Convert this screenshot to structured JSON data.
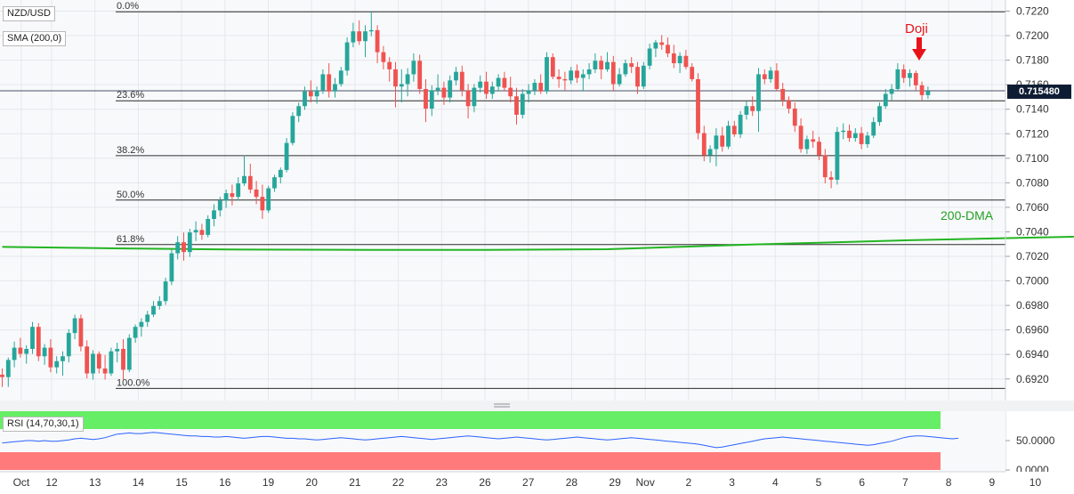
{
  "symbol": "NZD/USD",
  "sma_label": "SMA (200,0)",
  "rsi_label": "RSI (14,70,30,1)",
  "last_price": "0.715480",
  "annotations": {
    "doji": "Doji",
    "dma": "200-DMA"
  },
  "colors": {
    "bull": "#26a69a",
    "bear": "#ef5350",
    "sma": "#22b522",
    "trend_support": "#ff9800",
    "trend_resist": "#7b1fa2",
    "rsi_line": "#2962ff",
    "rsi_ob": "#66ee66",
    "rsi_os": "#ff7b7b",
    "doji_arrow": "#e8131a"
  },
  "chart_data": {
    "type": "candlestick",
    "y_ticks": [
      "0.7220",
      "0.7200",
      "0.7180",
      "0.7160",
      "0.7140",
      "0.7120",
      "0.7100",
      "0.7080",
      "0.7060",
      "0.7040",
      "0.7020",
      "0.7000",
      "0.6980",
      "0.6960",
      "0.6940",
      "0.6920"
    ],
    "x_labels": [
      {
        "label": "Oct",
        "day": -0.7
      },
      {
        "label": "12",
        "day": 0
      },
      {
        "label": "13",
        "day": 1
      },
      {
        "label": "14",
        "day": 2
      },
      {
        "label": "15",
        "day": 3
      },
      {
        "label": "16",
        "day": 4
      },
      {
        "label": "19",
        "day": 5
      },
      {
        "label": "20",
        "day": 6
      },
      {
        "label": "21",
        "day": 7
      },
      {
        "label": "22",
        "day": 8
      },
      {
        "label": "23",
        "day": 9
      },
      {
        "label": "26",
        "day": 10
      },
      {
        "label": "27",
        "day": 11
      },
      {
        "label": "28",
        "day": 12
      },
      {
        "label": "29",
        "day": 13
      },
      {
        "label": "Nov",
        "day": 13.7
      },
      {
        "label": "2",
        "day": 14.7
      },
      {
        "label": "3",
        "day": 15.7
      },
      {
        "label": "4",
        "day": 16.7
      },
      {
        "label": "5",
        "day": 17.7
      },
      {
        "label": "6",
        "day": 18.7
      },
      {
        "label": "7",
        "day": 19.7
      },
      {
        "label": "8",
        "day": 20.7
      },
      {
        "label": "9",
        "day": 21.7
      },
      {
        "label": "10",
        "day": 22.7
      }
    ],
    "fib_levels": [
      {
        "label": "0.0%",
        "price": 0.72195
      },
      {
        "label": "23.6%",
        "price": 0.71469
      },
      {
        "label": "38.2%",
        "price": 0.71021
      },
      {
        "label": "50.0%",
        "price": 0.70659
      },
      {
        "label": "61.8%",
        "price": 0.70296
      },
      {
        "label": "100.0%",
        "price": 0.69123
      }
    ],
    "current_price": 0.71548,
    "rsi_ticks": [
      "50.0000",
      "0.0000"
    ],
    "rsi_bands": {
      "overbought": 70,
      "oversold": 30
    },
    "candles": [
      [
        0.69235,
        0.69285,
        0.69135,
        0.69215
      ],
      [
        0.69215,
        0.69375,
        0.69135,
        0.69355
      ],
      [
        0.69355,
        0.69505,
        0.69295,
        0.69455
      ],
      [
        0.69455,
        0.69535,
        0.69375,
        0.69405
      ],
      [
        0.69405,
        0.69475,
        0.69325,
        0.69445
      ],
      [
        0.69445,
        0.69665,
        0.69405,
        0.69625
      ],
      [
        0.69625,
        0.69655,
        0.69345,
        0.69385
      ],
      [
        0.69385,
        0.69485,
        0.69315,
        0.69455
      ],
      [
        0.69455,
        0.69525,
        0.69255,
        0.69295
      ],
      [
        0.69295,
        0.69385,
        0.69245,
        0.69345
      ],
      [
        0.69345,
        0.69425,
        0.69225,
        0.69385
      ],
      [
        0.69385,
        0.69605,
        0.69335,
        0.69575
      ],
      [
        0.69575,
        0.69725,
        0.69525,
        0.69695
      ],
      [
        0.69695,
        0.69725,
        0.69425,
        0.69465
      ],
      [
        0.69465,
        0.69515,
        0.69205,
        0.69245
      ],
      [
        0.69245,
        0.69435,
        0.69195,
        0.69405
      ],
      [
        0.69405,
        0.69425,
        0.69245,
        0.69285
      ],
      [
        0.69285,
        0.69395,
        0.69195,
        0.69245
      ],
      [
        0.69245,
        0.69455,
        0.69225,
        0.69425
      ],
      [
        0.69425,
        0.69495,
        0.69335,
        0.69445
      ],
      [
        0.69445,
        0.69525,
        0.69195,
        0.69275
      ],
      [
        0.69275,
        0.69565,
        0.69255,
        0.69535
      ],
      [
        0.69535,
        0.69645,
        0.69495,
        0.69625
      ],
      [
        0.69625,
        0.69695,
        0.69545,
        0.69665
      ],
      [
        0.69665,
        0.69755,
        0.69625,
        0.69725
      ],
      [
        0.69725,
        0.69835,
        0.69705,
        0.69795
      ],
      [
        0.69795,
        0.69875,
        0.69765,
        0.69835
      ],
      [
        0.69835,
        0.70025,
        0.69805,
        0.69995
      ],
      [
        0.69995,
        0.70255,
        0.69965,
        0.70225
      ],
      [
        0.70225,
        0.70365,
        0.70175,
        0.70315
      ],
      [
        0.70315,
        0.70395,
        0.70165,
        0.70235
      ],
      [
        0.70235,
        0.70425,
        0.70195,
        0.70395
      ],
      [
        0.70395,
        0.70485,
        0.70325,
        0.70415
      ],
      [
        0.70415,
        0.70465,
        0.70335,
        0.70375
      ],
      [
        0.70375,
        0.70535,
        0.70355,
        0.70505
      ],
      [
        0.70505,
        0.70625,
        0.70445,
        0.70575
      ],
      [
        0.70575,
        0.70685,
        0.70525,
        0.70655
      ],
      [
        0.70655,
        0.70745,
        0.70595,
        0.70715
      ],
      [
        0.70715,
        0.70785,
        0.70615,
        0.70685
      ],
      [
        0.70685,
        0.70845,
        0.70655,
        0.70795
      ],
      [
        0.70795,
        0.71025,
        0.70775,
        0.70855
      ],
      [
        0.70855,
        0.70955,
        0.70715,
        0.70745
      ],
      [
        0.70745,
        0.70815,
        0.70625,
        0.70685
      ],
      [
        0.70685,
        0.70785,
        0.70505,
        0.70575
      ],
      [
        0.70575,
        0.70775,
        0.70555,
        0.70755
      ],
      [
        0.70755,
        0.70865,
        0.70725,
        0.70845
      ],
      [
        0.70845,
        0.70925,
        0.70795,
        0.70905
      ],
      [
        0.70905,
        0.71165,
        0.70885,
        0.71125
      ],
      [
        0.71125,
        0.71375,
        0.71105,
        0.71345
      ],
      [
        0.71345,
        0.71455,
        0.71295,
        0.71425
      ],
      [
        0.71425,
        0.71585,
        0.71395,
        0.71545
      ],
      [
        0.71545,
        0.71635,
        0.71455,
        0.71505
      ],
      [
        0.71505,
        0.71585,
        0.71445,
        0.71555
      ],
      [
        0.71555,
        0.71725,
        0.71525,
        0.71685
      ],
      [
        0.71685,
        0.71775,
        0.71495,
        0.71545
      ],
      [
        0.71545,
        0.71655,
        0.71495,
        0.71605
      ],
      [
        0.71605,
        0.71745,
        0.71585,
        0.71715
      ],
      [
        0.71715,
        0.71985,
        0.71675,
        0.71945
      ],
      [
        0.71945,
        0.72105,
        0.71905,
        0.72035
      ],
      [
        0.72035,
        0.72125,
        0.71925,
        0.71955
      ],
      [
        0.71955,
        0.72085,
        0.71825,
        0.72035
      ],
      [
        0.72035,
        0.72195,
        0.71995,
        0.72045
      ],
      [
        0.72045,
        0.72085,
        0.71775,
        0.71865
      ],
      [
        0.71865,
        0.71915,
        0.71725,
        0.71785
      ],
      [
        0.71785,
        0.71825,
        0.71625,
        0.71725
      ],
      [
        0.71725,
        0.71785,
        0.71415,
        0.71585
      ],
      [
        0.71585,
        0.71725,
        0.71455,
        0.71605
      ],
      [
        0.71605,
        0.71735,
        0.71505,
        0.71685
      ],
      [
        0.71685,
        0.71855,
        0.71625,
        0.71795
      ],
      [
        0.71795,
        0.71845,
        0.71525,
        0.71565
      ],
      [
        0.71565,
        0.71645,
        0.71295,
        0.71405
      ],
      [
        0.71405,
        0.71595,
        0.71345,
        0.71555
      ],
      [
        0.71555,
        0.71685,
        0.71515,
        0.71575
      ],
      [
        0.71575,
        0.71625,
        0.71435,
        0.71495
      ],
      [
        0.71495,
        0.71675,
        0.71455,
        0.71635
      ],
      [
        0.71635,
        0.71745,
        0.71595,
        0.71705
      ],
      [
        0.71705,
        0.71755,
        0.71505,
        0.71555
      ],
      [
        0.71555,
        0.71605,
        0.71325,
        0.71425
      ],
      [
        0.71425,
        0.71605,
        0.71375,
        0.71575
      ],
      [
        0.71575,
        0.71675,
        0.71535,
        0.71625
      ],
      [
        0.71625,
        0.71705,
        0.71485,
        0.71525
      ],
      [
        0.71525,
        0.71625,
        0.71485,
        0.71585
      ],
      [
        0.71585,
        0.71685,
        0.71545,
        0.71655
      ],
      [
        0.71655,
        0.71705,
        0.71545,
        0.71575
      ],
      [
        0.71575,
        0.71665,
        0.71455,
        0.71505
      ],
      [
        0.71505,
        0.71575,
        0.71275,
        0.71355
      ],
      [
        0.71355,
        0.71565,
        0.71325,
        0.71525
      ],
      [
        0.71525,
        0.71605,
        0.71455,
        0.71555
      ],
      [
        0.71555,
        0.71645,
        0.71515,
        0.71615
      ],
      [
        0.71615,
        0.71685,
        0.71525,
        0.71545
      ],
      [
        0.71545,
        0.71865,
        0.71525,
        0.71825
      ],
      [
        0.71825,
        0.71855,
        0.71645,
        0.71665
      ],
      [
        0.71665,
        0.71725,
        0.71575,
        0.71645
      ],
      [
        0.71645,
        0.71705,
        0.71555,
        0.71635
      ],
      [
        0.71635,
        0.71745,
        0.71605,
        0.71715
      ],
      [
        0.71715,
        0.71765,
        0.71615,
        0.71655
      ],
      [
        0.71655,
        0.71725,
        0.71545,
        0.71685
      ],
      [
        0.71685,
        0.71775,
        0.71645,
        0.71725
      ],
      [
        0.71725,
        0.71855,
        0.71695,
        0.71795
      ],
      [
        0.71795,
        0.71835,
        0.71645,
        0.71725
      ],
      [
        0.71725,
        0.71865,
        0.71705,
        0.71785
      ],
      [
        0.71785,
        0.71835,
        0.71545,
        0.71605
      ],
      [
        0.71605,
        0.71735,
        0.71585,
        0.71685
      ],
      [
        0.71685,
        0.71805,
        0.71665,
        0.71775
      ],
      [
        0.71775,
        0.71825,
        0.71695,
        0.71745
      ],
      [
        0.71745,
        0.71785,
        0.71525,
        0.71585
      ],
      [
        0.71585,
        0.71785,
        0.71565,
        0.71755
      ],
      [
        0.71755,
        0.71935,
        0.71725,
        0.71895
      ],
      [
        0.71895,
        0.71965,
        0.71825,
        0.71945
      ],
      [
        0.71945,
        0.72005,
        0.71885,
        0.71925
      ],
      [
        0.71925,
        0.71985,
        0.71825,
        0.71855
      ],
      [
        0.71855,
        0.71925,
        0.71735,
        0.71775
      ],
      [
        0.71775,
        0.71865,
        0.71695,
        0.71835
      ],
      [
        0.71835,
        0.71885,
        0.71725,
        0.71745
      ],
      [
        0.71745,
        0.71775,
        0.71625,
        0.71645
      ],
      [
        0.71645,
        0.71695,
        0.71155,
        0.71205
      ],
      [
        0.71205,
        0.71265,
        0.70975,
        0.71025
      ],
      [
        0.71025,
        0.71105,
        0.70965,
        0.71075
      ],
      [
        0.71075,
        0.71245,
        0.70935,
        0.71185
      ],
      [
        0.71185,
        0.71255,
        0.71055,
        0.71095
      ],
      [
        0.71095,
        0.71305,
        0.71075,
        0.71265
      ],
      [
        0.71265,
        0.71305,
        0.71175,
        0.71195
      ],
      [
        0.71195,
        0.71385,
        0.71165,
        0.71355
      ],
      [
        0.71355,
        0.71465,
        0.71315,
        0.71425
      ],
      [
        0.71425,
        0.71505,
        0.71345,
        0.71385
      ],
      [
        0.71385,
        0.71735,
        0.71215,
        0.71685
      ],
      [
        0.71685,
        0.71725,
        0.71605,
        0.71645
      ],
      [
        0.71645,
        0.71745,
        0.71615,
        0.71715
      ],
      [
        0.71715,
        0.71775,
        0.71545,
        0.71565
      ],
      [
        0.71565,
        0.71615,
        0.71425,
        0.71475
      ],
      [
        0.71475,
        0.71505,
        0.71365,
        0.71405
      ],
      [
        0.71405,
        0.71455,
        0.71215,
        0.71265
      ],
      [
        0.71265,
        0.71325,
        0.71045,
        0.71075
      ],
      [
        0.71075,
        0.71185,
        0.71035,
        0.71155
      ],
      [
        0.71155,
        0.71225,
        0.71085,
        0.71135
      ],
      [
        0.71135,
        0.71175,
        0.70985,
        0.71025
      ],
      [
        0.71025,
        0.71075,
        0.70795,
        0.70845
      ],
      [
        0.70845,
        0.70895,
        0.70755,
        0.70825
      ],
      [
        0.70825,
        0.71255,
        0.70785,
        0.71215
      ],
      [
        0.71215,
        0.71285,
        0.71155,
        0.71225
      ],
      [
        0.71225,
        0.71275,
        0.71135,
        0.71165
      ],
      [
        0.71165,
        0.71245,
        0.71135,
        0.71205
      ],
      [
        0.71205,
        0.71255,
        0.71075,
        0.71115
      ],
      [
        0.71115,
        0.71215,
        0.71085,
        0.71185
      ],
      [
        0.71185,
        0.71335,
        0.71165,
        0.71295
      ],
      [
        0.71295,
        0.71455,
        0.71265,
        0.71425
      ],
      [
        0.71425,
        0.71565,
        0.71405,
        0.71525
      ],
      [
        0.71525,
        0.71605,
        0.71475,
        0.71565
      ],
      [
        0.71565,
        0.71775,
        0.71545,
        0.71725
      ],
      [
        0.71725,
        0.71765,
        0.71615,
        0.71655
      ],
      [
        0.71655,
        0.71725,
        0.71585,
        0.71695
      ],
      [
        0.71695,
        0.71715,
        0.71555,
        0.71595
      ],
      [
        0.71595,
        0.71625,
        0.71475,
        0.71515
      ],
      [
        0.71515,
        0.71585,
        0.71485,
        0.71548
      ]
    ],
    "sma200_points": [
      [
        0,
        0.70277
      ],
      [
        16,
        0.70267
      ],
      [
        40,
        0.70255
      ],
      [
        60,
        0.70253
      ],
      [
        80,
        0.70253
      ],
      [
        100,
        0.70258
      ],
      [
        110,
        0.70275
      ],
      [
        123,
        0.70295
      ],
      [
        135,
        0.70311
      ],
      [
        148,
        0.70329
      ],
      [
        163,
        0.70345
      ],
      [
        176,
        0.70359
      ],
      [
        190,
        0.70377
      ],
      [
        205,
        0.70395
      ],
      [
        221,
        0.70414
      ],
      [
        238,
        0.70436
      ],
      [
        254,
        0.70455
      ],
      [
        266,
        0.70476
      ],
      [
        276,
        0.70498
      ],
      [
        288,
        0.70517
      ],
      [
        298,
        0.70541
      ],
      [
        305,
        0.70557
      ]
    ],
    "resistance_line": {
      "from": [
        193,
        0.7219
      ],
      "to": [
        306,
        0.71405
      ]
    },
    "support_line": {
      "from": [
        274,
        0.70735
      ],
      "to": [
        304,
        0.71655
      ]
    },
    "rsi_values": [
      46,
      47,
      48,
      49,
      50,
      50,
      49,
      50,
      49,
      49,
      50,
      51,
      53,
      54,
      53,
      52,
      53,
      55,
      58,
      61,
      62,
      63,
      62,
      62,
      63,
      64,
      63,
      62,
      61,
      60,
      59,
      58,
      58,
      57,
      57,
      56,
      56,
      57,
      56,
      55,
      54,
      55,
      56,
      57,
      57,
      56,
      55,
      54,
      54,
      53,
      53,
      52,
      51,
      52,
      53,
      54,
      55,
      54,
      53,
      52,
      51,
      52,
      53,
      54,
      55,
      56,
      57,
      56,
      55,
      54,
      53,
      52,
      53,
      54,
      55,
      56,
      57,
      58,
      57,
      56,
      55,
      54,
      53,
      54,
      55,
      56,
      55,
      54,
      53,
      52,
      51,
      52,
      53,
      54,
      55,
      56,
      55,
      54,
      53,
      52,
      51,
      52,
      53,
      54,
      55,
      54,
      53,
      52,
      51,
      50,
      49,
      48,
      47,
      46,
      45,
      44,
      42,
      40,
      38,
      39,
      41,
      43,
      45,
      47,
      49,
      51,
      53,
      54,
      55,
      56,
      55,
      54,
      53,
      52,
      51,
      50,
      49,
      48,
      47,
      46,
      45,
      44,
      43,
      42,
      43,
      45,
      47,
      49,
      52,
      55,
      57,
      58,
      58,
      57,
      56,
      55,
      54,
      53,
      54
    ]
  }
}
